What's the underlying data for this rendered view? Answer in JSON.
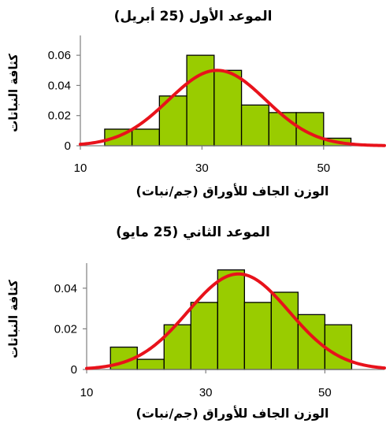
{
  "chart_data": [
    {
      "type": "bar",
      "title": "الموعد الأول (25 أبريل)",
      "xlabel": "الوزن الجاف للأوراق (جم/نبات)",
      "ylabel": "كثافة النباتات",
      "xlim": [
        10,
        60
      ],
      "ylim": [
        0,
        0.07
      ],
      "x_ticks": [
        "10",
        "30",
        "50"
      ],
      "y_ticks": [
        "0",
        "0.02",
        "0.04",
        "0.06"
      ],
      "bins": [
        {
          "x0": 14,
          "x1": 18.5,
          "density": 0.011
        },
        {
          "x0": 18.5,
          "x1": 23,
          "density": 0.011
        },
        {
          "x0": 23,
          "x1": 27.5,
          "density": 0.033
        },
        {
          "x0": 27.5,
          "x1": 32,
          "density": 0.06
        },
        {
          "x0": 32,
          "x1": 36.5,
          "density": 0.05
        },
        {
          "x0": 36.5,
          "x1": 41,
          "density": 0.027
        },
        {
          "x0": 41,
          "x1": 45.5,
          "density": 0.022
        },
        {
          "x0": 45.5,
          "x1": 50,
          "density": 0.022
        },
        {
          "x0": 50,
          "x1": 54.5,
          "density": 0.005
        }
      ],
      "normal_curve": {
        "mean": 32.5,
        "sd": 8,
        "peak_density": 0.05
      }
    },
    {
      "type": "bar",
      "title": "الموعد الثاني (25 مايو)",
      "xlabel": "الوزن الجاف للأوراق (جم/نبات)",
      "ylabel": "كثافة النباتات",
      "xlim": [
        10,
        60
      ],
      "ylim": [
        0,
        0.05
      ],
      "x_ticks": [
        "10",
        "30",
        "50"
      ],
      "y_ticks": [
        "0",
        "0.02",
        "0.04"
      ],
      "bins": [
        {
          "x0": 14,
          "x1": 18.5,
          "density": 0.011
        },
        {
          "x0": 18.5,
          "x1": 23,
          "density": 0.005
        },
        {
          "x0": 23,
          "x1": 27.5,
          "density": 0.022
        },
        {
          "x0": 27.5,
          "x1": 32,
          "density": 0.033
        },
        {
          "x0": 32,
          "x1": 36.5,
          "density": 0.049
        },
        {
          "x0": 36.5,
          "x1": 41,
          "density": 0.033
        },
        {
          "x0": 41,
          "x1": 45.5,
          "density": 0.038
        },
        {
          "x0": 45.5,
          "x1": 50,
          "density": 0.027
        },
        {
          "x0": 50,
          "x1": 54.5,
          "density": 0.022
        }
      ],
      "normal_curve": {
        "mean": 35.5,
        "sd": 8.5,
        "peak_density": 0.047
      }
    }
  ],
  "colors": {
    "bar_fill": "#99CC00",
    "bar_stroke": "#000000",
    "curve": "#E8121B",
    "axis": "#808080"
  }
}
